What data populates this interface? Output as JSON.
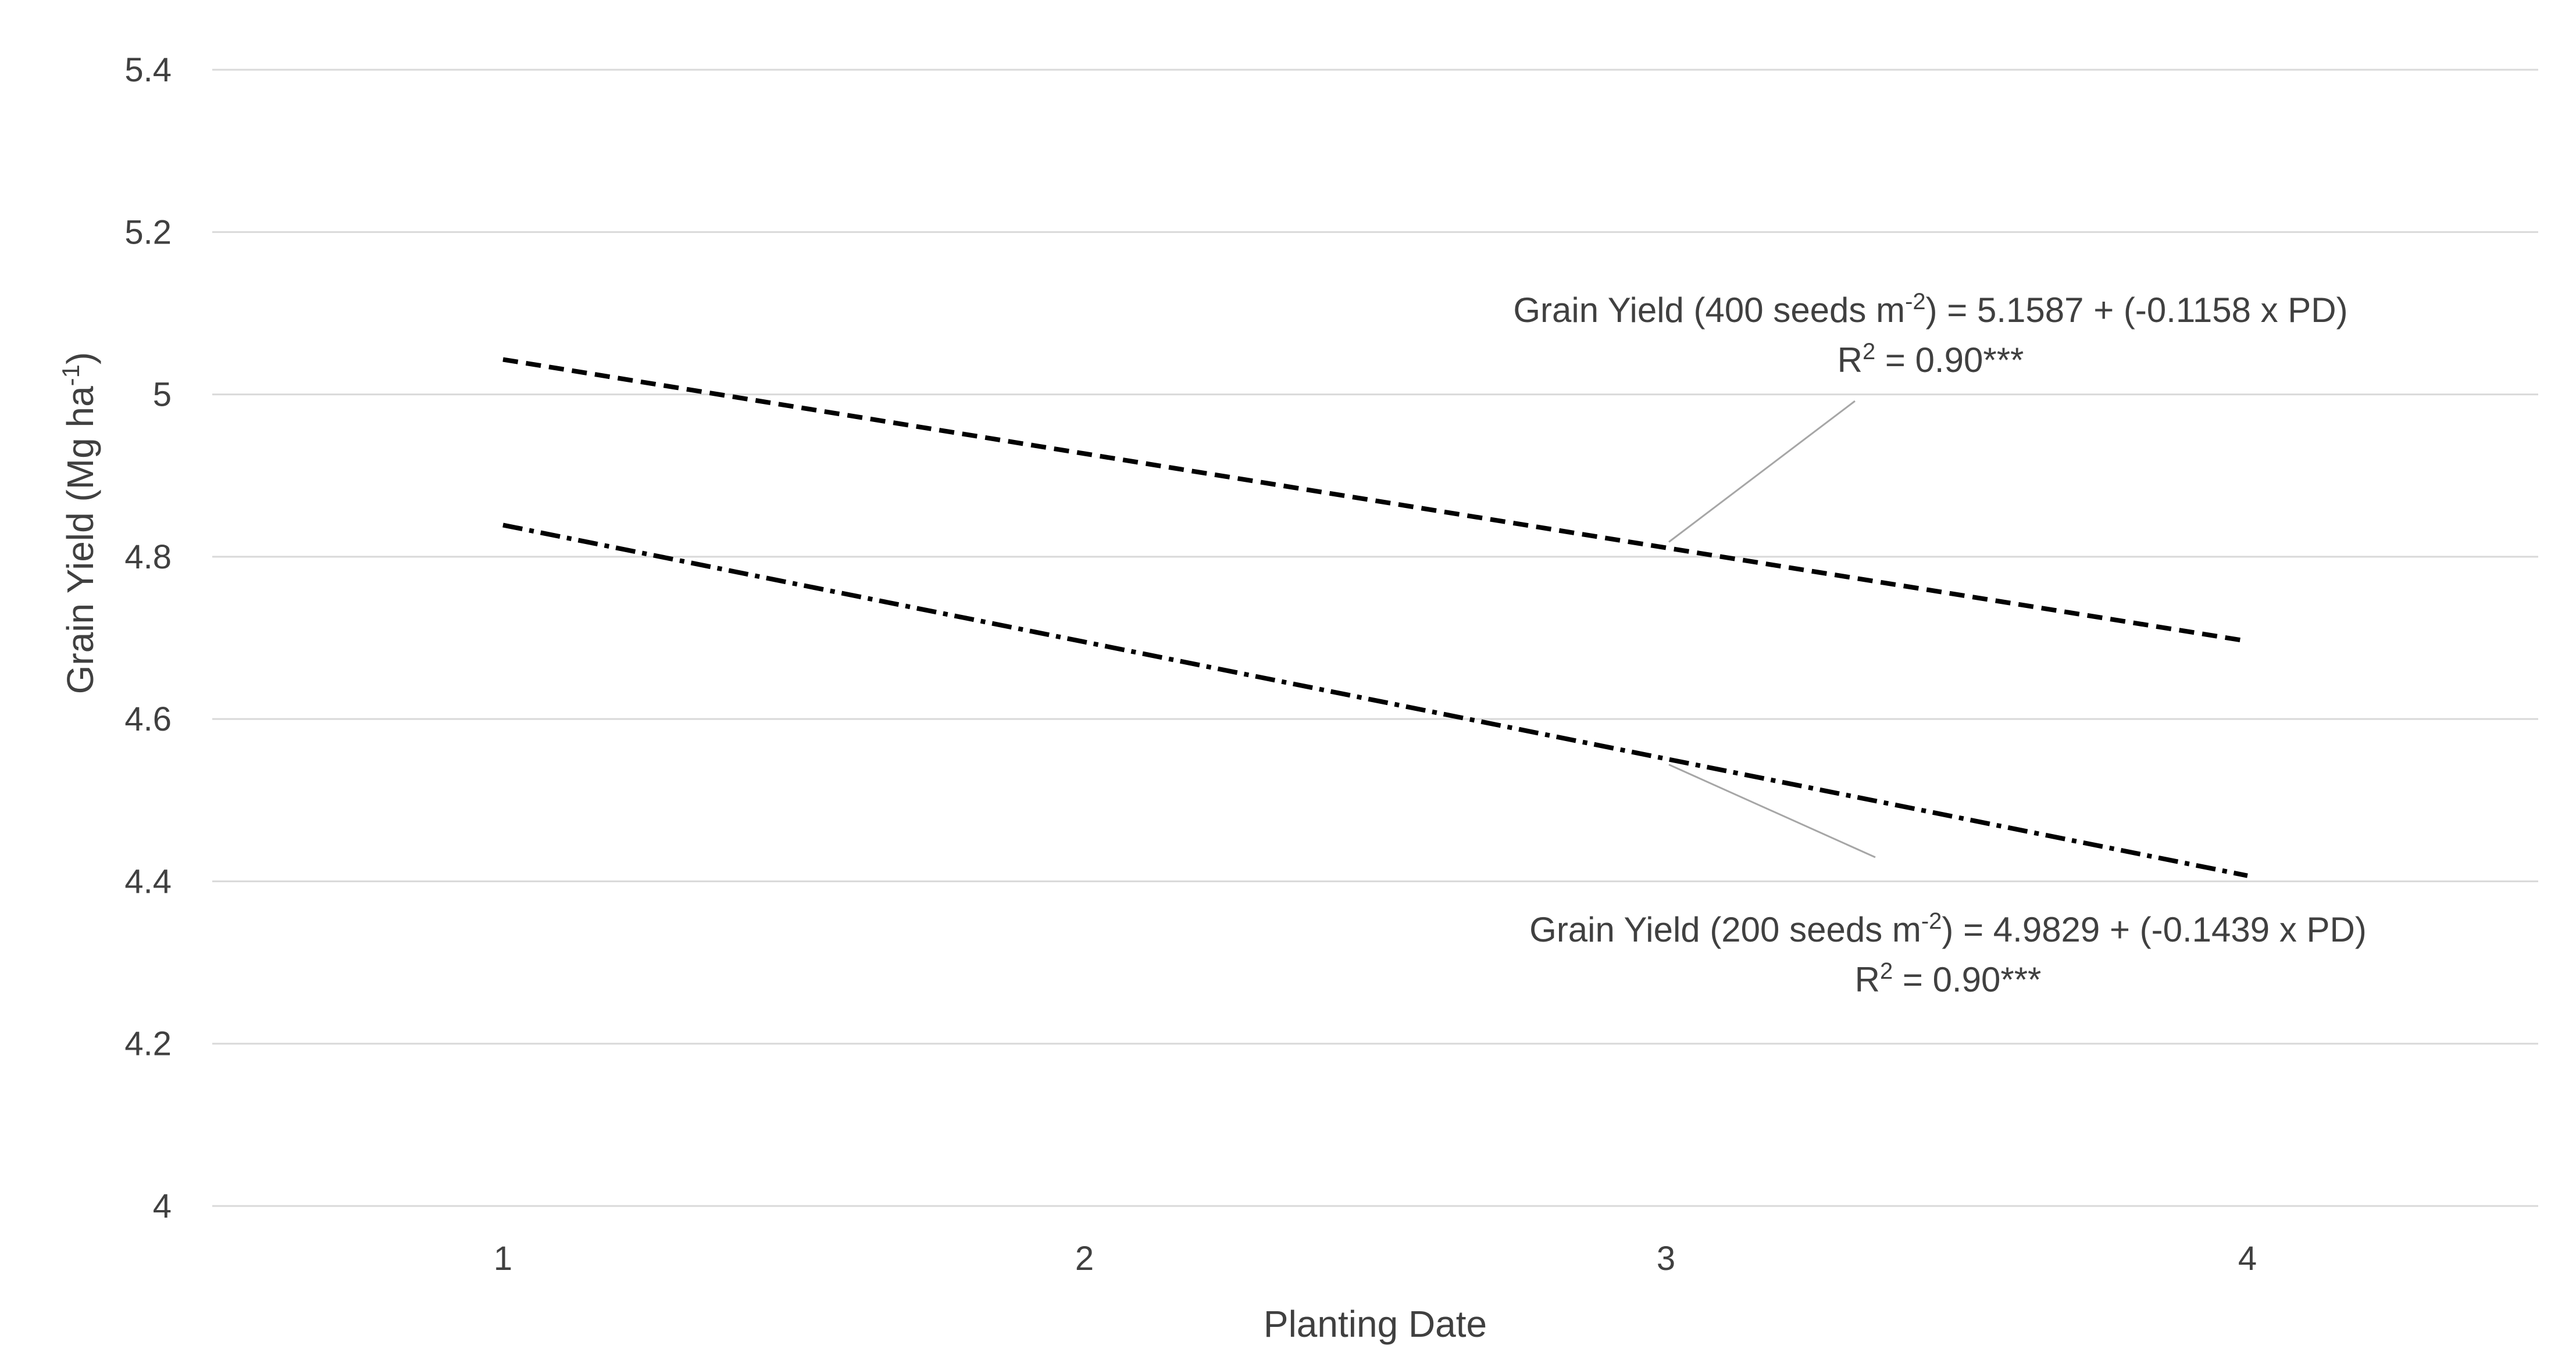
{
  "chart_data": {
    "type": "line",
    "title": "",
    "xlabel": "Planting Date",
    "ylabel": "Grain Yield (Mg ha-1)",
    "ylabel_base": "Grain Yield (Mg ha",
    "ylabel_sup": "-1",
    "ylabel_close": ")",
    "x": [
      1,
      2,
      3,
      4
    ],
    "x_tick_labels": [
      "1",
      "2",
      "3",
      "4"
    ],
    "ylim": [
      4,
      5.4
    ],
    "y_ticks": [
      4,
      4.2,
      4.4,
      4.6,
      4.8,
      5,
      5.2,
      5.4
    ],
    "y_tick_labels": [
      "4",
      "4.2",
      "4.4",
      "4.6",
      "4.8",
      "5",
      "5.2",
      "5.4"
    ],
    "grid": true,
    "series": [
      {
        "name": "400 seeds m-2",
        "style": "dashed",
        "color": "#000000",
        "intercept": 5.1587,
        "slope": -0.1158,
        "values": [
          5.043,
          4.927,
          4.811,
          4.696
        ]
      },
      {
        "name": "200 seeds m-2",
        "style": "dash-dot",
        "color": "#000000",
        "intercept": 4.9829,
        "slope": -0.1439,
        "values": [
          4.839,
          4.695,
          4.551,
          4.407
        ]
      }
    ],
    "annotations": [
      {
        "series": "400 seeds m-2",
        "line1_pre": "Grain Yield (400 seeds m",
        "line1_sup": "-2",
        "line1_post": ") = 5.1587 + (-0.1158 x PD)",
        "line2_pre": "R",
        "line2_sup": "2",
        "line2_post": " = 0.90***",
        "points_to_x": 3
      },
      {
        "series": "200 seeds m-2",
        "line1_pre": "Grain Yield (200 seeds m",
        "line1_sup": "-2",
        "line1_post": ") = 4.9829 + (-0.1439 x PD)",
        "line2_pre": "R",
        "line2_sup": "2",
        "line2_post": " = 0.90***",
        "points_to_x": 3
      }
    ]
  }
}
